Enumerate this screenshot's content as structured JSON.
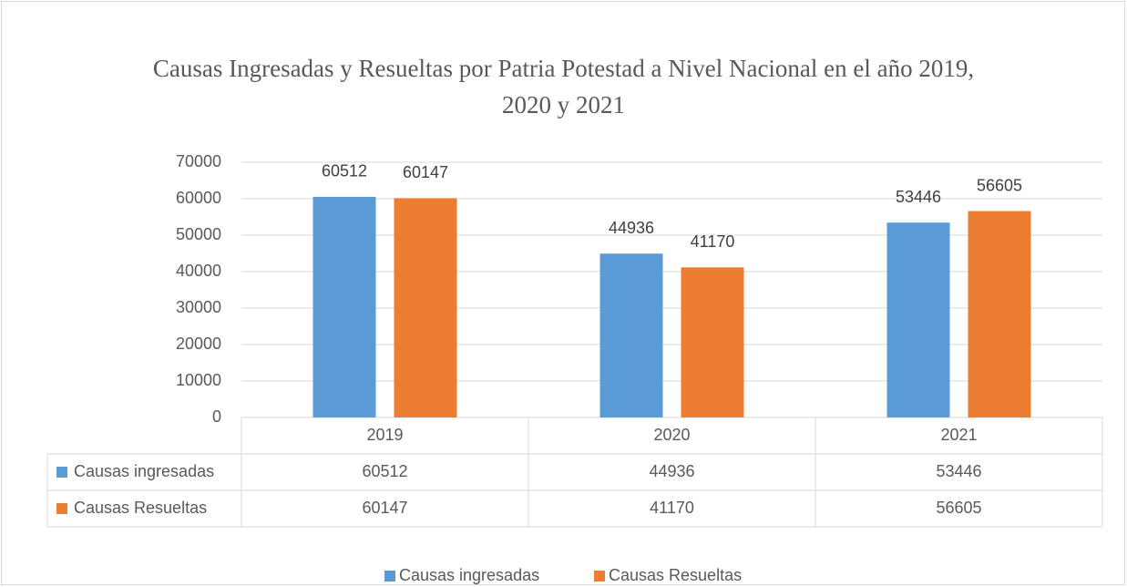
{
  "chart_data": {
    "type": "bar",
    "title": "Causas Ingresadas y Resueltas por Patria Potestad a Nivel Nacional en el año 2019, 2020 y 2021",
    "categories": [
      "2019",
      "2020",
      "2021"
    ],
    "series": [
      {
        "name": "Causas ingresadas",
        "color": "#5b9bd5",
        "values": [
          60512,
          44936,
          53446
        ]
      },
      {
        "name": "Causas Resueltas",
        "color": "#ed7d31",
        "values": [
          60147,
          41170,
          56605
        ]
      }
    ],
    "ylim": [
      0,
      70000
    ],
    "yticks": [
      0,
      10000,
      20000,
      30000,
      40000,
      50000,
      60000,
      70000
    ],
    "grid": true,
    "legend": "bottom"
  }
}
